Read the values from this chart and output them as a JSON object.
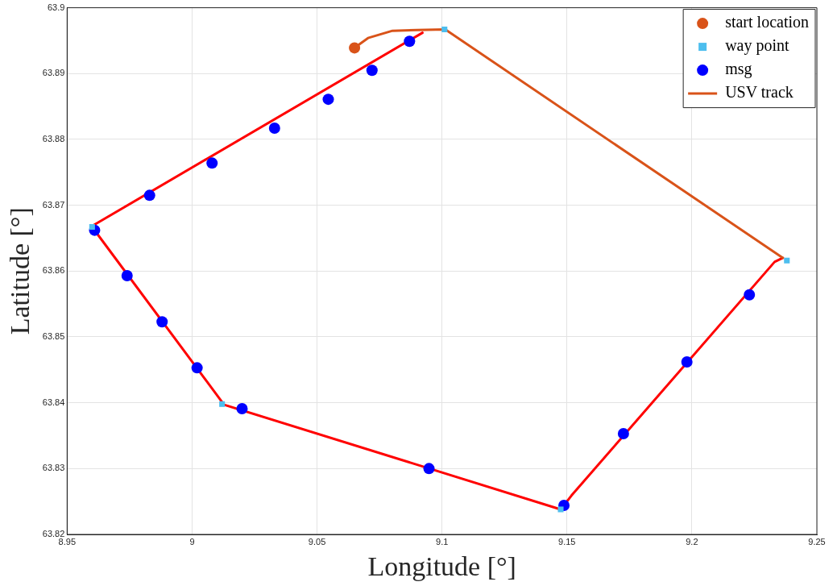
{
  "chart_data": {
    "type": "scatter",
    "xlabel": "Longitude [°]",
    "ylabel": "Latitude [°]",
    "xlim": [
      8.95,
      9.25
    ],
    "xticks": [
      8.95,
      9,
      9.05,
      9.1,
      9.15,
      9.2,
      9.25
    ],
    "ylim": [
      63.82,
      63.9
    ],
    "yticks": [
      63.82,
      63.83,
      63.84,
      63.85,
      63.86,
      63.87,
      63.88,
      63.89,
      63.9
    ],
    "grid": true,
    "legend": "top right",
    "series": [
      {
        "name": "start location",
        "marker": "circle",
        "color": "#d95319",
        "x": [
          9.065
        ],
        "values": [
          63.8939
        ]
      },
      {
        "name": "way point",
        "marker": "square",
        "color": "#4dbeee",
        "x": [
          9.101,
          9.238,
          9.1475,
          9.012,
          8.96
        ],
        "values": [
          63.8967,
          63.8616,
          63.8238,
          63.8398,
          63.8667
        ]
      },
      {
        "name": "msg",
        "marker": "circle",
        "color": "#0000ff",
        "x": [
          9.087,
          9.072,
          9.0545,
          9.033,
          9.008,
          8.983,
          8.961,
          8.974,
          8.988,
          9.002,
          9.02,
          9.0948,
          9.1488,
          9.1726,
          9.198,
          9.223
        ],
        "values": [
          63.8949,
          63.8905,
          63.8861,
          63.8817,
          63.8764,
          63.8715,
          63.8662,
          63.8593,
          63.8523,
          63.8453,
          63.8391,
          63.83,
          63.8244,
          63.8353,
          63.8462,
          63.8564
        ]
      },
      {
        "name": "USV track",
        "type": "line",
        "marker": "none",
        "color": "#d95319",
        "x": [
          9.0649,
          9.0704,
          9.0802,
          9.0899,
          9.1013,
          9.2364
        ],
        "values": [
          63.8939,
          63.8954,
          63.8965,
          63.8966,
          63.8967,
          63.862
        ]
      },
      {
        "type": "line",
        "marker": "none",
        "color": "#ff0000",
        "x": [
          9.2364,
          9.2331,
          9.1518,
          9.1475,
          9.0128,
          8.9598,
          9.0922
        ],
        "values": [
          63.862,
          63.8614,
          63.8259,
          63.8238,
          63.8397,
          63.8668,
          63.8962
        ]
      }
    ]
  }
}
